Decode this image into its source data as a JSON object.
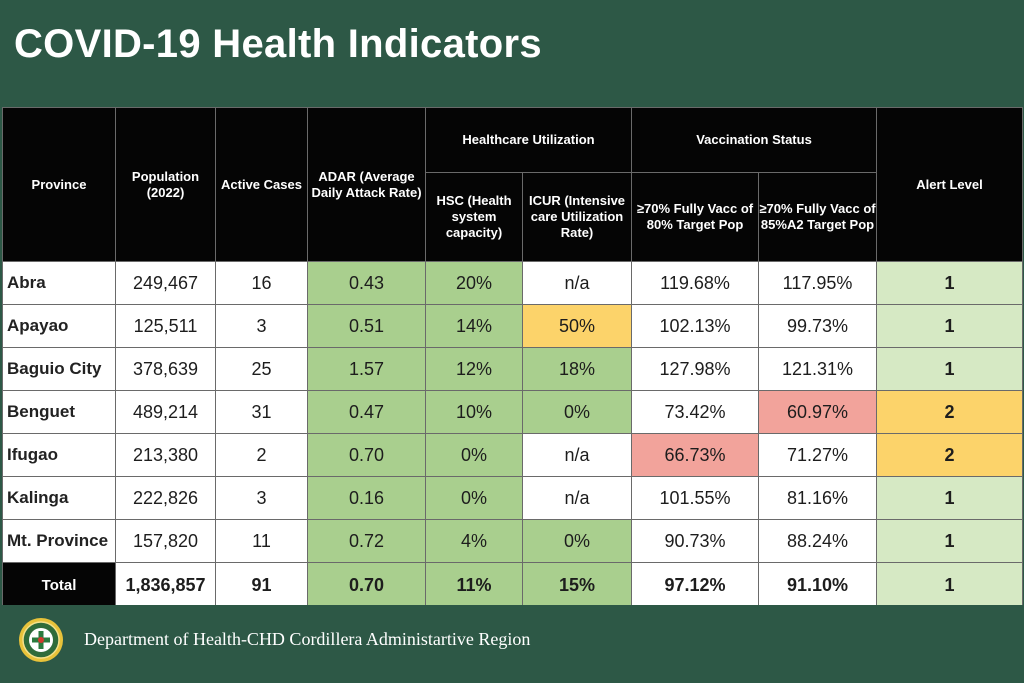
{
  "title": "COVID-19 Health Indicators",
  "headers": {
    "province": "Province",
    "population": "Population (2022)",
    "active_cases": "Active Cases",
    "adar": "ADAR (Average Daily Attack Rate)",
    "healthcare_utilization": "Healthcare Utilization",
    "hsc": "HSC (Health system capacity)",
    "icur": "ICUR (Intensive care Utilization Rate)",
    "vaccination_status": "Vaccination Status",
    "vacc_80": "≥70% Fully Vacc of 80% Target Pop",
    "vacc_85": "≥70% Fully Vacc of 85%A2 Target Pop",
    "alert_level": "Alert Level"
  },
  "rows": [
    {
      "province": "Abra",
      "population": "249,467",
      "active": "16",
      "adar": "0.43",
      "hsc": "20%",
      "icur": "n/a",
      "vacc80": "119.68%",
      "vacc85": "117.95%",
      "alert": "1"
    },
    {
      "province": "Apayao",
      "population": "125,511",
      "active": "3",
      "adar": "0.51",
      "hsc": "14%",
      "icur": "50%",
      "vacc80": "102.13%",
      "vacc85": "99.73%",
      "alert": "1"
    },
    {
      "province": "Baguio City",
      "population": "378,639",
      "active": "25",
      "adar": "1.57",
      "hsc": "12%",
      "icur": "18%",
      "vacc80": "127.98%",
      "vacc85": "121.31%",
      "alert": "1"
    },
    {
      "province": "Benguet",
      "population": "489,214",
      "active": "31",
      "adar": "0.47",
      "hsc": "10%",
      "icur": "0%",
      "vacc80": "73.42%",
      "vacc85": "60.97%",
      "alert": "2"
    },
    {
      "province": "Ifugao",
      "population": "213,380",
      "active": "2",
      "adar": "0.70",
      "hsc": "0%",
      "icur": "n/a",
      "vacc80": "66.73%",
      "vacc85": "71.27%",
      "alert": "2"
    },
    {
      "province": "Kalinga",
      "population": "222,826",
      "active": "3",
      "adar": "0.16",
      "hsc": "0%",
      "icur": "n/a",
      "vacc80": "101.55%",
      "vacc85": "81.16%",
      "alert": "1"
    },
    {
      "province": "Mt. Province",
      "population": "157,820",
      "active": "11",
      "adar": "0.72",
      "hsc": "4%",
      "icur": "0%",
      "vacc80": "90.73%",
      "vacc85": "88.24%",
      "alert": "1"
    }
  ],
  "total": {
    "label": "Total",
    "population": "1,836,857",
    "active": "91",
    "adar": "0.70",
    "hsc": "11%",
    "icur": "15%",
    "vacc80": "97.12%",
    "vacc85": "91.10%",
    "alert": "1"
  },
  "colors": {
    "background": "#2d5846",
    "green": "#a9cf8e",
    "light_green": "#d6e9c4",
    "yellow": "#fcd36a",
    "red": "#f2a39b",
    "header": "#050505"
  },
  "footer": {
    "text": "Department of Health-CHD Cordillera Administartive Region",
    "seal_icon": "doh-seal-icon"
  }
}
